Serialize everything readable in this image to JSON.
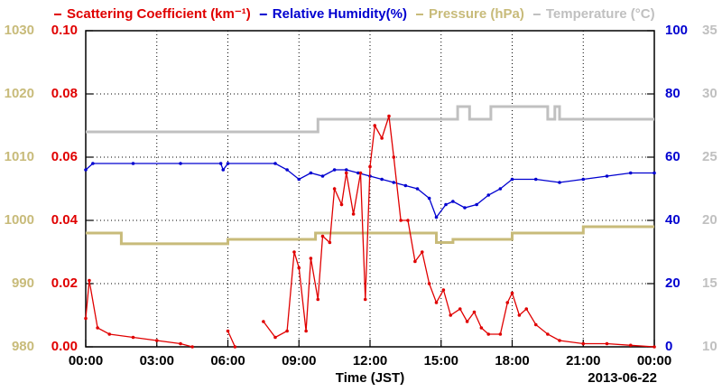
{
  "chart_data": {
    "type": "line",
    "xlabel": "Time (JST)",
    "date_label": "2013-06-22",
    "xlim": [
      0,
      24
    ],
    "xticks": [
      {
        "value": 0,
        "label": "00:00"
      },
      {
        "value": 3,
        "label": "03:00"
      },
      {
        "value": 6,
        "label": "06:00"
      },
      {
        "value": 9,
        "label": "09:00"
      },
      {
        "value": 12,
        "label": "12:00"
      },
      {
        "value": 15,
        "label": "15:00"
      },
      {
        "value": 18,
        "label": "18:00"
      },
      {
        "value": 21,
        "label": "21:00"
      },
      {
        "value": 24,
        "label": "00:00"
      }
    ],
    "ylim": [
      0,
      0.1
    ],
    "yticks": [
      {
        "value": 0,
        "label": "0.00"
      },
      0.02,
      0.04,
      0.06,
      0.08,
      {
        "value": 0.1,
        "label": "0.10"
      }
    ],
    "y2lim": [
      0,
      100
    ],
    "y2ticks": [
      0,
      20,
      40,
      60,
      80,
      100
    ],
    "y3lim": [
      980,
      1030
    ],
    "y3ticks": [
      980,
      990,
      1000,
      1010,
      1020,
      1030
    ],
    "y4lim": [
      10,
      35
    ],
    "y4ticks": [
      10,
      15,
      20,
      25,
      30,
      35
    ],
    "grid": true,
    "series": [
      {
        "name": "Scattering Coefficient (km⁻¹)",
        "color": "#e00000",
        "axis": "y",
        "markers": true,
        "x": [
          0,
          0.15,
          0.5,
          1,
          2,
          3,
          4,
          4.5,
          5,
          6,
          6.3,
          7,
          7.5,
          8,
          8.5,
          8.8,
          9,
          9.3,
          9.5,
          9.8,
          10,
          10.3,
          10.5,
          10.8,
          11,
          11.3,
          11.6,
          11.8,
          12,
          12.2,
          12.5,
          12.8,
          13,
          13.3,
          13.6,
          13.9,
          14.2,
          14.5,
          14.8,
          15.1,
          15.4,
          15.8,
          16.1,
          16.4,
          16.7,
          17,
          17.5,
          17.8,
          18,
          18.3,
          18.6,
          19,
          19.5,
          20,
          21,
          22,
          23,
          24
        ],
        "values": [
          0.009,
          0.021,
          0.006,
          0.004,
          0.003,
          0.002,
          0.001,
          0,
          null,
          0.005,
          0,
          null,
          0.008,
          0.003,
          0.005,
          0.03,
          0.025,
          0.005,
          0.028,
          0.015,
          0.035,
          0.033,
          0.05,
          0.045,
          0.055,
          0.042,
          0.055,
          0.015,
          0.057,
          0.07,
          0.066,
          0.073,
          0.06,
          0.04,
          0.04,
          0.027,
          0.03,
          0.02,
          0.014,
          0.018,
          0.01,
          0.012,
          0.008,
          0.011,
          0.006,
          0.004,
          0.004,
          0.014,
          0.017,
          0.01,
          0.012,
          0.007,
          0.004,
          0.002,
          0.001,
          0.001,
          0.0005,
          0
        ]
      },
      {
        "name": "Relative Humidity(%)",
        "color": "#0000d0",
        "axis": "y2",
        "markers": true,
        "x": [
          0,
          0.3,
          2,
          4,
          5.7,
          5.8,
          6,
          8,
          8.5,
          9,
          9.5,
          10,
          10.5,
          11,
          11.5,
          12,
          12.5,
          13,
          13.5,
          14,
          14.5,
          14.8,
          15.2,
          15.5,
          16,
          16.5,
          17,
          17.5,
          18,
          19,
          20,
          21,
          22,
          23,
          24
        ],
        "values": [
          56,
          58,
          58,
          58,
          58,
          56,
          58,
          58,
          56,
          53,
          55,
          54,
          56,
          56,
          55,
          54,
          53,
          52,
          51,
          50,
          47,
          41,
          45,
          46,
          44,
          45,
          48,
          50,
          53,
          53,
          52,
          53,
          54,
          55,
          55
        ]
      },
      {
        "name": "Pressure (hPa)",
        "color": "#c8bb7a",
        "axis": "y3",
        "markers": false,
        "x": [
          0,
          1.5,
          1.5,
          6,
          6,
          9.7,
          9.7,
          14.8,
          14.8,
          15.5,
          15.5,
          18,
          18,
          21,
          21,
          24
        ],
        "values": [
          998,
          998,
          996.3,
          996.3,
          997,
          997,
          998,
          998,
          996.5,
          996.5,
          997,
          997,
          998,
          998,
          999,
          999
        ]
      },
      {
        "name": "Temperature (°C)",
        "color": "#c0c0c0",
        "axis": "y4",
        "markers": false,
        "x": [
          0,
          9.8,
          9.8,
          15.7,
          15.7,
          16.2,
          16.2,
          17.1,
          17.1,
          19.5,
          19.5,
          19.8,
          19.8,
          20,
          20,
          24
        ],
        "values": [
          27,
          27,
          28,
          28,
          29,
          29,
          28,
          28,
          29,
          29,
          28,
          28,
          29,
          29,
          28,
          28
        ]
      }
    ]
  }
}
